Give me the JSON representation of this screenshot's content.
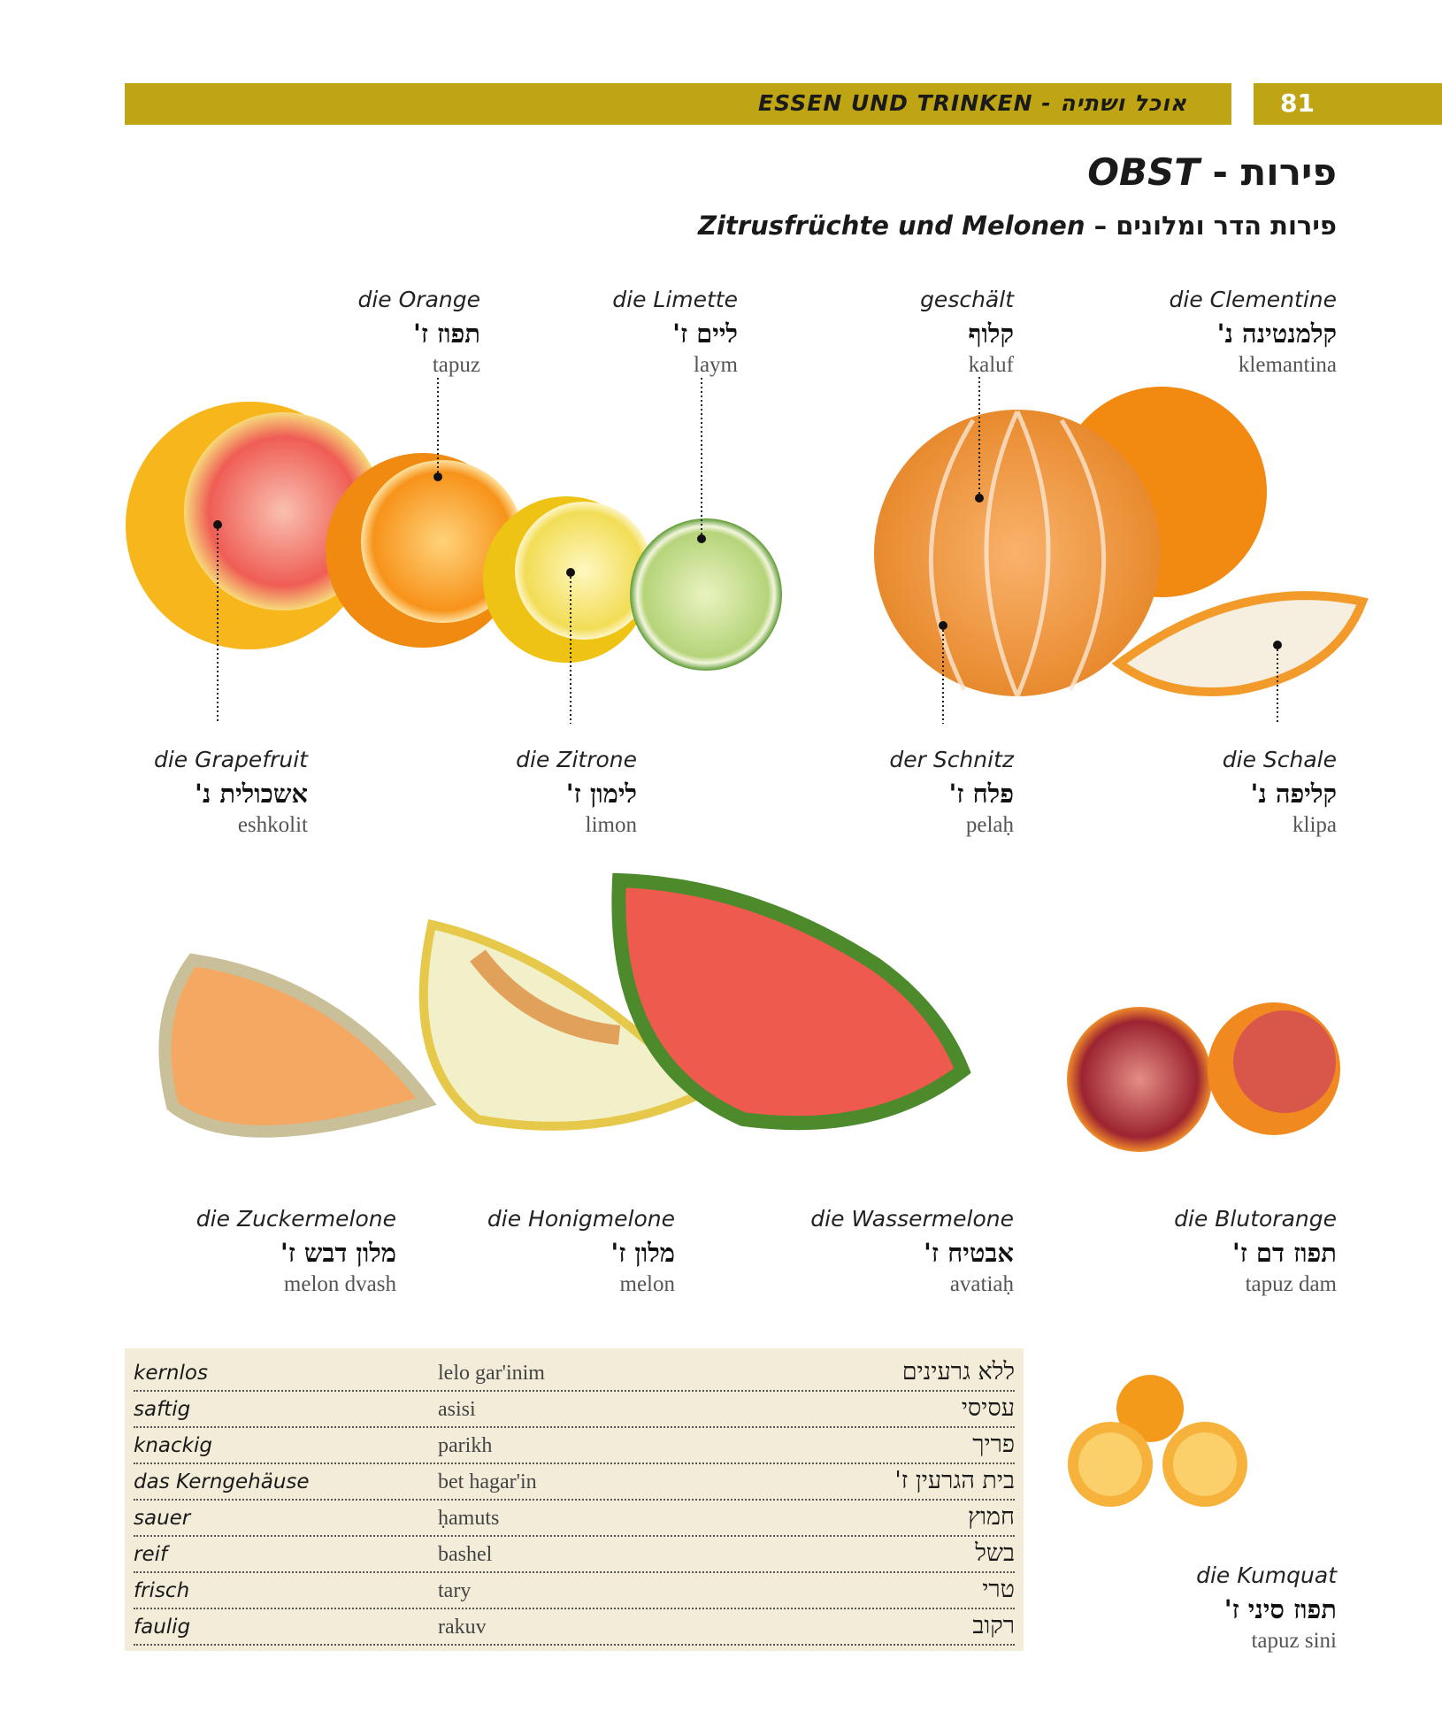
{
  "header": {
    "section": "ESSEN UND TRINKEN - אוכל ושתיה",
    "page_number": "81",
    "accent_color": "#bfa514"
  },
  "title": {
    "de": "OBST",
    "sep": " - ",
    "he": "פירות"
  },
  "subtitle": {
    "de": "Zitrusfrüchte und Melonen",
    "sep": " – ",
    "he": "פירות הדר ומלונים"
  },
  "labels": [
    {
      "id": "orange",
      "de": "die Orange",
      "he": "תפוז ז'",
      "tr": "tapuz"
    },
    {
      "id": "limette",
      "de": "die Limette",
      "he": "ליים ז'",
      "tr": "laym"
    },
    {
      "id": "geschaelt",
      "de": "geschält",
      "he": "קלוף",
      "tr": "kaluf"
    },
    {
      "id": "clementine",
      "de": "die Clementine",
      "he": "קלמנטינה נ'",
      "tr": "klemantina"
    },
    {
      "id": "grapefruit",
      "de": "die Grapefruit",
      "he": "אשכולית נ'",
      "tr": "eshkolit"
    },
    {
      "id": "zitrone",
      "de": "die Zitrone",
      "he": "לימון ז'",
      "tr": "limon"
    },
    {
      "id": "schnitz",
      "de": "der Schnitz",
      "he": "פלח ז'",
      "tr": "pelaḥ"
    },
    {
      "id": "schale",
      "de": "die Schale",
      "he": "קליפה נ'",
      "tr": "klipa"
    },
    {
      "id": "zuckermelone",
      "de": "die Zuckermelone",
      "he": "מלון דבש ז'",
      "tr": "melon dvash"
    },
    {
      "id": "honigmelone",
      "de": "die Honigmelone",
      "he": "מלון ז'",
      "tr": "melon"
    },
    {
      "id": "wassermelone",
      "de": "die Wassermelone",
      "he": "אבטיח ז'",
      "tr": "avatiaḥ"
    },
    {
      "id": "blutorange",
      "de": "die Blutorange",
      "he": "תפוז דם ז'",
      "tr": "tapuz dam"
    },
    {
      "id": "kumquat",
      "de": "die Kumquat",
      "he": "תפוז סיני ז'",
      "tr": "tapuz sini"
    }
  ],
  "vocab": [
    {
      "de": "kernlos",
      "tr": "lelo gar'inim",
      "he": "ללא גרעינים"
    },
    {
      "de": "saftig",
      "tr": "asisi",
      "he": "עסיסי"
    },
    {
      "de": "knackig",
      "tr": "parikh",
      "he": "פריך"
    },
    {
      "de": "das Kerngehäuse",
      "tr": "bet hagar'in",
      "he": "בית הגרעין ז'"
    },
    {
      "de": "sauer",
      "tr": "ḥamuts",
      "he": "חמוץ"
    },
    {
      "de": "reif",
      "tr": "bashel",
      "he": "בשל"
    },
    {
      "de": "frisch",
      "tr": "tary",
      "he": "טרי"
    },
    {
      "de": "faulig",
      "tr": "rakuv",
      "he": "רקוב"
    }
  ]
}
